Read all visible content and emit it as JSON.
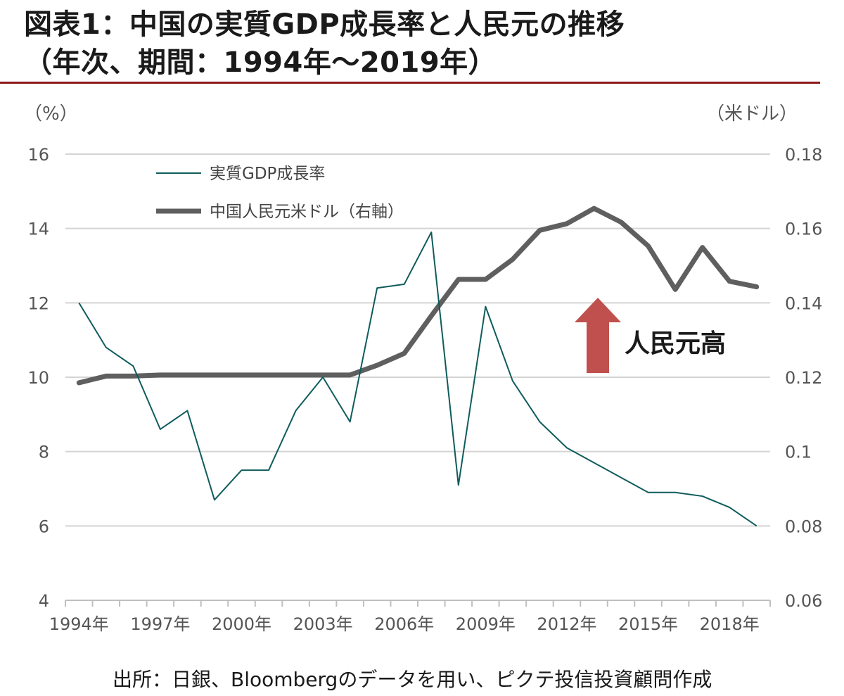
{
  "header": {
    "title_line1": "図表1：中国の実質GDP成長率と人民元の推移",
    "title_line2": "（年次、期間：1994年〜2019年）"
  },
  "colors": {
    "rule": "#8b1a1a",
    "gdp_line": "#0f5c5c",
    "cny_line": "#5f5f5f",
    "grid": "#d4d4d4",
    "arrow": "#c0504d"
  },
  "source": "出所：日銀、Bloombergのデータを用い、ピクテ投信投資顧問作成",
  "chart_data": {
    "type": "line",
    "title": "",
    "y_left_unit": "（%）",
    "y_right_unit": "（米ドル）",
    "ylim_left": [
      4,
      16
    ],
    "ylim_right": [
      0.06,
      0.18
    ],
    "y_left_ticks": [
      "16",
      "14",
      "12",
      "10",
      "8",
      "6",
      "4"
    ],
    "y_right_ticks": [
      "0.18",
      "0.16",
      "0.14",
      "0.12",
      "0.1",
      "0.08",
      "0.06"
    ],
    "x": [
      1994,
      1995,
      1996,
      1997,
      1998,
      1999,
      2000,
      2001,
      2002,
      2003,
      2004,
      2005,
      2006,
      2007,
      2008,
      2009,
      2010,
      2011,
      2012,
      2013,
      2014,
      2015,
      2016,
      2017,
      2018,
      2019
    ],
    "x_tick_labels": [
      "1994年",
      "1997年",
      "2000年",
      "2003年",
      "2006年",
      "2009年",
      "2012年",
      "2015年",
      "2018年"
    ],
    "grid": true,
    "legend_position": "top-left",
    "series": [
      {
        "name": "実質GDP成長率",
        "axis": "left",
        "values": [
          12.0,
          10.8,
          10.3,
          8.6,
          9.1,
          6.7,
          7.5,
          7.5,
          9.1,
          10.0,
          8.8,
          12.4,
          12.5,
          13.9,
          7.1,
          11.9,
          9.9,
          8.8,
          8.1,
          7.7,
          7.3,
          6.9,
          6.9,
          6.8,
          6.5,
          6.0
        ]
      },
      {
        "name": "中国人民元米ドル（右軸）",
        "axis": "right",
        "values": [
          0.1185,
          0.1203,
          0.1203,
          0.1206,
          0.1206,
          0.1206,
          0.1206,
          0.1206,
          0.1206,
          0.1206,
          0.1206,
          0.1232,
          0.1264,
          0.1365,
          0.1463,
          0.1463,
          0.1517,
          0.1595,
          0.1613,
          0.1654,
          0.1617,
          0.1553,
          0.1436,
          0.1549,
          0.1458,
          0.1443
        ]
      }
    ],
    "annotations": [
      {
        "text": "人民元高",
        "x": 2013.6,
        "y_right": 0.127
      }
    ]
  }
}
